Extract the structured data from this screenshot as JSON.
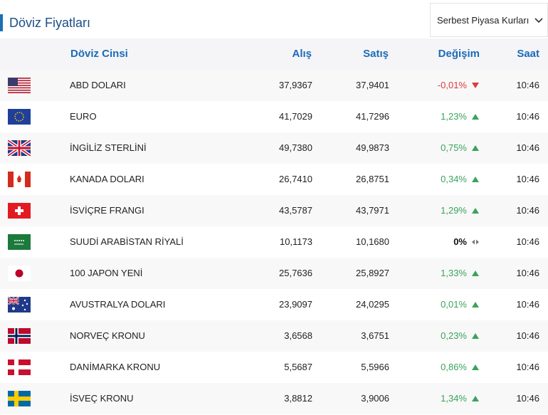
{
  "header": {
    "title": "Döviz Fiyatları",
    "dropdown": "Serbest Piyasa Kurları"
  },
  "table": {
    "columns": [
      "Döviz Cinsi",
      "Alış",
      "Satış",
      "Değişim",
      "Saat"
    ],
    "rows": [
      [
        "ABD DOLARI",
        "37,9367",
        "37,9401",
        "-0,01%",
        "10:46"
      ],
      [
        "EURO",
        "41,7029",
        "41,7296",
        "1,23%",
        "10:46"
      ],
      [
        "İNGİLİZ STERLİNİ",
        "49,7380",
        "49,9873",
        "0,75%",
        "10:46"
      ],
      [
        "KANADA DOLARI",
        "26,7410",
        "26,8751",
        "0,34%",
        "10:46"
      ],
      [
        "İSVİÇRE FRANGI",
        "43,5787",
        "43,7971",
        "1,29%",
        "10:46"
      ],
      [
        "SUUDİ ARABİSTAN RİYALİ",
        "10,1173",
        "10,1680",
        "0%",
        "10:46"
      ],
      [
        "100 JAPON YENİ",
        "25,7636",
        "25,8927",
        "1,33%",
        "10:46"
      ],
      [
        "AVUSTRALYA DOLARI",
        "23,9097",
        "24,0295",
        "0,01%",
        "10:46"
      ],
      [
        "NORVEÇ KRONU",
        "3,6568",
        "3,6751",
        "0,23%",
        "10:46"
      ],
      [
        "DANİMARKA KRONU",
        "5,5687",
        "5,5966",
        "0,86%",
        "10:46"
      ],
      [
        "İSVEÇ KRONU",
        "3,8812",
        "3,9006",
        "1,34%",
        "10:46"
      ]
    ]
  }
}
